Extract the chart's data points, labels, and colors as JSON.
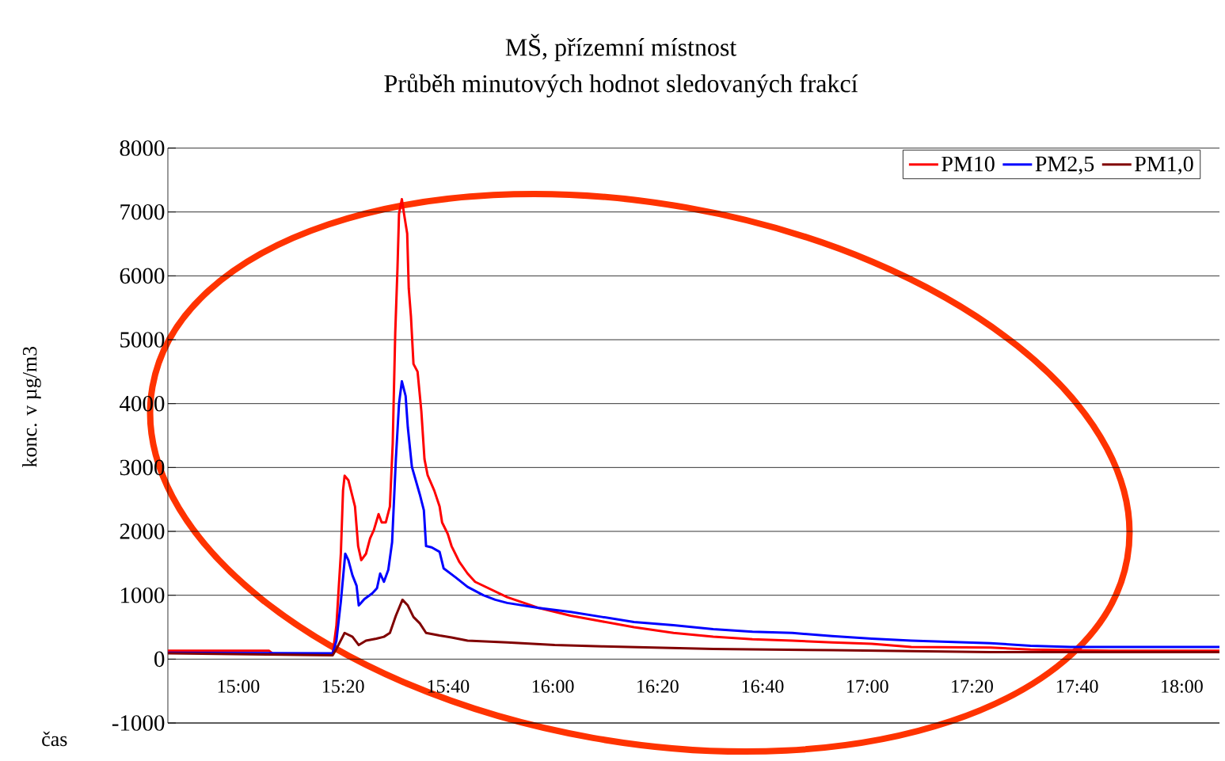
{
  "chart_data": {
    "type": "line",
    "title": "MŠ, přízemní místnost",
    "subtitle": "Průběh minutových hodnot sledovaných frakcí",
    "xlabel": "čas",
    "ylabel": "konc. v µg/m3",
    "xlim": [
      14.776,
      18.12
    ],
    "ylim": [
      -1000,
      8000
    ],
    "xticks": [
      {
        "value": 15,
        "label": "15:00"
      },
      {
        "value": 15.333,
        "label": "15:20"
      },
      {
        "value": 15.667,
        "label": "15:40"
      },
      {
        "value": 16,
        "label": "16:00"
      },
      {
        "value": 16.333,
        "label": "16:20"
      },
      {
        "value": 16.667,
        "label": "16:40"
      },
      {
        "value": 17,
        "label": "17:00"
      },
      {
        "value": 17.333,
        "label": "17:20"
      },
      {
        "value": 17.667,
        "label": "17:40"
      },
      {
        "value": 18,
        "label": "18:00"
      }
    ],
    "yticks": [
      -1000,
      0,
      1000,
      2000,
      3000,
      4000,
      5000,
      6000,
      7000,
      8000
    ],
    "grid": "y",
    "legend": "top right",
    "marker": "none",
    "line_style": "solid",
    "series": [
      {
        "name": "PM10",
        "color": "#ff0000",
        "x": [
          14.776,
          15.098,
          15.111,
          15.3,
          15.312,
          15.326,
          15.333,
          15.338,
          15.35,
          15.371,
          15.381,
          15.391,
          15.406,
          15.419,
          15.431,
          15.446,
          15.456,
          15.469,
          15.482,
          15.491,
          15.499,
          15.506,
          15.511,
          15.52,
          15.527,
          15.537,
          15.542,
          15.549,
          15.557,
          15.57,
          15.582,
          15.592,
          15.602,
          15.623,
          15.64,
          15.648,
          15.666,
          15.678,
          15.703,
          15.729,
          15.753,
          15.804,
          15.855,
          15.956,
          16.057,
          16.157,
          16.258,
          16.384,
          16.51,
          16.635,
          16.762,
          16.888,
          17.014,
          17.14,
          17.392,
          17.519,
          17.771,
          18.12
        ],
        "values": [
          130,
          130,
          80,
          80,
          530,
          1650,
          2640,
          2870,
          2800,
          2390,
          1770,
          1550,
          1650,
          1890,
          2020,
          2270,
          2140,
          2140,
          2390,
          3380,
          5110,
          6100,
          6970,
          7200,
          6970,
          6660,
          5800,
          5360,
          4620,
          4500,
          3880,
          3130,
          2880,
          2640,
          2390,
          2140,
          1960,
          1770,
          1520,
          1340,
          1210,
          1090,
          970,
          800,
          680,
          590,
          500,
          410,
          350,
          310,
          290,
          260,
          240,
          190,
          180,
          150,
          130,
          130
        ]
      },
      {
        "name": "PM2,5",
        "color": "#0000ff",
        "x": [
          14.776,
          15.3,
          15.312,
          15.326,
          15.34,
          15.35,
          15.363,
          15.376,
          15.383,
          15.401,
          15.426,
          15.441,
          15.451,
          15.463,
          15.477,
          15.489,
          15.501,
          15.511,
          15.52,
          15.532,
          15.539,
          15.552,
          15.577,
          15.59,
          15.597,
          15.615,
          15.64,
          15.653,
          15.691,
          15.729,
          15.779,
          15.817,
          15.855,
          15.956,
          16.057,
          16.157,
          16.258,
          16.384,
          16.51,
          16.635,
          16.762,
          16.888,
          17.014,
          17.14,
          17.392,
          17.519,
          17.646,
          18.12
        ],
        "values": [
          100,
          90,
          290,
          900,
          1650,
          1550,
          1310,
          1150,
          840,
          940,
          1030,
          1110,
          1340,
          1210,
          1400,
          1830,
          3130,
          4000,
          4350,
          4120,
          3630,
          3010,
          2580,
          2330,
          1770,
          1750,
          1680,
          1420,
          1280,
          1130,
          1000,
          930,
          880,
          800,
          740,
          660,
          580,
          530,
          470,
          430,
          410,
          360,
          320,
          290,
          250,
          210,
          190,
          190
        ]
      },
      {
        "name": "PM1,0",
        "color": "#800000",
        "x": [
          14.776,
          15.3,
          15.312,
          15.338,
          15.363,
          15.383,
          15.406,
          15.439,
          15.463,
          15.482,
          15.501,
          15.522,
          15.539,
          15.557,
          15.577,
          15.597,
          15.64,
          15.678,
          15.729,
          15.855,
          16.006,
          16.157,
          16.51,
          16.888,
          17.392,
          18.12
        ],
        "values": [
          90,
          60,
          160,
          410,
          350,
          220,
          290,
          320,
          350,
          410,
          680,
          930,
          840,
          660,
          560,
          410,
          370,
          340,
          290,
          260,
          220,
          200,
          160,
          140,
          110,
          110
        ]
      }
    ]
  }
}
